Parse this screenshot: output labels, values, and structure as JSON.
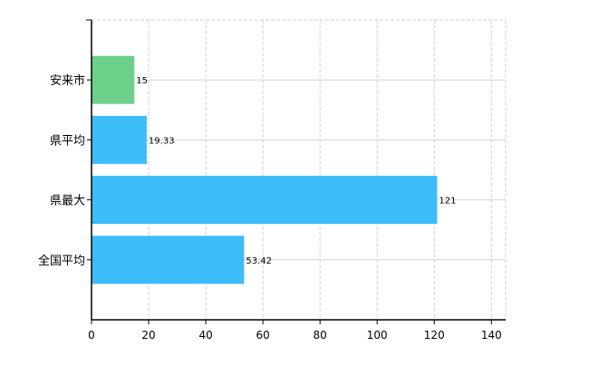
{
  "chart_data": {
    "type": "bar",
    "orientation": "horizontal",
    "categories": [
      "安来市",
      "県平均",
      "県最大",
      "全国平均"
    ],
    "values": [
      15,
      19.33,
      121,
      53.42
    ],
    "value_labels": [
      "15",
      "19.33",
      "121",
      "53.42"
    ],
    "bar_colors": [
      "#6dd08a",
      "#3cbcf8",
      "#3cbcf8",
      "#3cbcf8"
    ],
    "title": "",
    "xlabel": "",
    "ylabel": "",
    "xlim": [
      0,
      145
    ],
    "xticks": [
      0,
      20,
      40,
      60,
      80,
      100,
      120,
      140
    ],
    "grid": true,
    "grid_color": "#cfd4d4",
    "legend": "none"
  }
}
